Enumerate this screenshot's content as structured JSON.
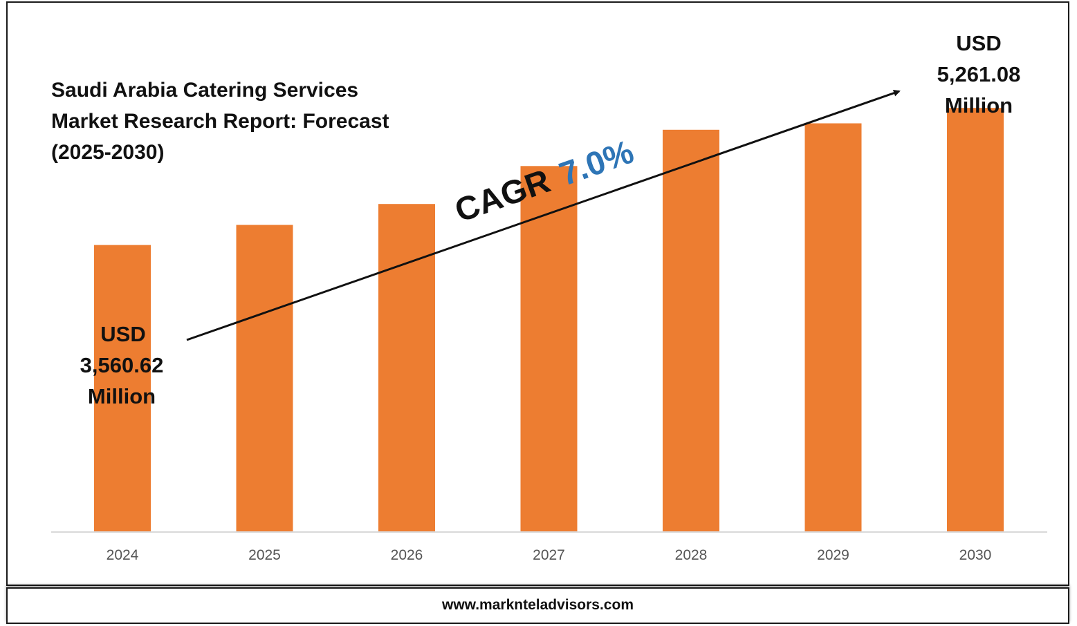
{
  "title_lines": [
    "Saudi Arabia Catering Services",
    "Market Research Report: Forecast",
    "(2025-2030)"
  ],
  "footer": {
    "url": "www.marknteladvisors.com"
  },
  "cagr": {
    "label": "CAGR",
    "value": "7.0%"
  },
  "start_annotation": [
    "USD",
    "3,560.62",
    "Million"
  ],
  "end_annotation": [
    "USD",
    "5,261.08",
    "Million"
  ],
  "colors": {
    "bar": "#ED7D31",
    "cagr_value": "#2E75B6",
    "text": "#111111",
    "axis": "#d9d9d9"
  },
  "chart_data": {
    "type": "bar",
    "categories": [
      "2024",
      "2025",
      "2026",
      "2027",
      "2028",
      "2029",
      "2030"
    ],
    "values": [
      3560.62,
      3810,
      4070,
      4540,
      4990,
      5070,
      5261.08
    ],
    "unit": "USD Million",
    "ylim": [
      0,
      6000
    ],
    "grid": false,
    "legend": "none"
  }
}
